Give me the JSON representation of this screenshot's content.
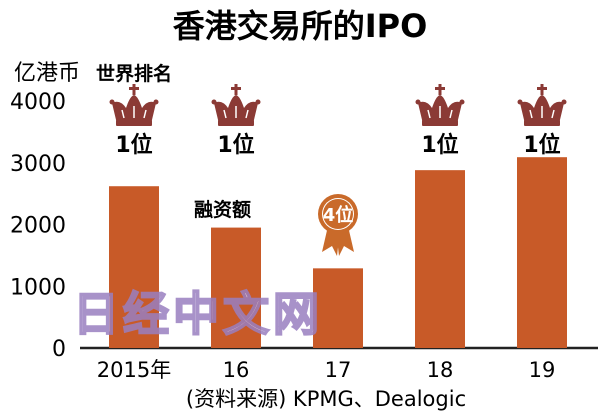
{
  "chart_data": {
    "type": "bar",
    "title": "香港交易所的IPO",
    "ylabel": "亿港币",
    "categories": [
      "2015年",
      "16",
      "17",
      "18",
      "19"
    ],
    "values": [
      2620,
      1950,
      1290,
      2880,
      3090
    ],
    "ylim": [
      0,
      4000
    ],
    "yticks": [
      0,
      1000,
      2000,
      3000,
      4000
    ],
    "grid": false,
    "bar_color": "#c85a28",
    "ranking_label": "世界排名",
    "ranks": [
      "1位",
      "1位",
      "4位",
      "1位",
      "1位"
    ],
    "rank_icons": [
      "crown-icon",
      "crown-icon",
      "medal-icon",
      "crown-icon",
      "crown-icon"
    ],
    "annotation": "融资额",
    "source": "(资料来源) KPMG、Dealogic"
  },
  "watermark": "日经中文网",
  "colors": {
    "crown": "#8b3a35",
    "medal": "#c96a2a",
    "watermark": "#9a7fc0"
  }
}
